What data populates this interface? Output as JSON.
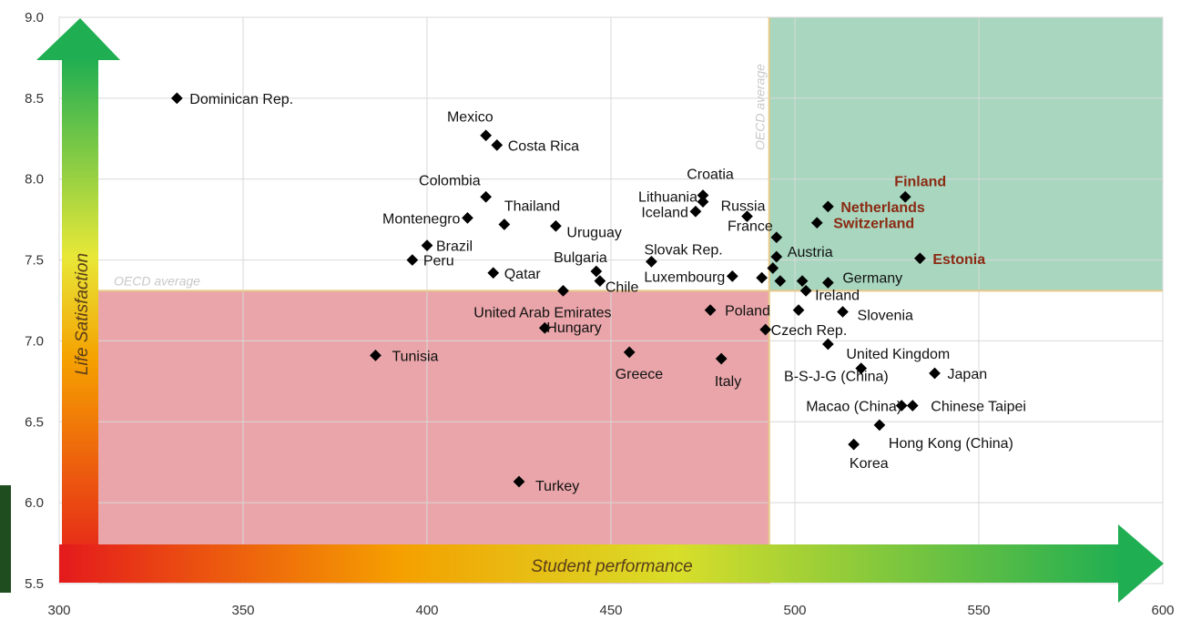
{
  "chart_data": {
    "type": "scatter",
    "title": "",
    "xlabel": "Student performance",
    "ylabel": "Life Satisfaction",
    "xlim": [
      300,
      600
    ],
    "ylim": [
      5.5,
      9.0
    ],
    "x_ticks": [
      300,
      350,
      400,
      450,
      500,
      550,
      600
    ],
    "y_ticks": [
      "5.5",
      "6.0",
      "6.5",
      "7.0",
      "7.5",
      "8.0",
      "8.5",
      "9.0"
    ],
    "grid": true,
    "reference_lines": {
      "x": {
        "value": 493,
        "label": "OECD average"
      },
      "y": {
        "value": 7.31,
        "label": "OECD average"
      }
    },
    "colors": {
      "low_quadrant": "#e8a0a4",
      "high_quadrant": "#a3d4bc",
      "highlight_label": "#8b2a12",
      "marker": "#000000"
    },
    "points": [
      {
        "label": "Dominican Rep.",
        "x": 332,
        "y": 8.5
      },
      {
        "label": "Mexico",
        "x": 416,
        "y": 8.27
      },
      {
        "label": "Costa Rica",
        "x": 419,
        "y": 8.21
      },
      {
        "label": "Colombia",
        "x": 416,
        "y": 7.89
      },
      {
        "label": "Thailand",
        "x": 421,
        "y": 7.72
      },
      {
        "label": "Montenegro",
        "x": 411,
        "y": 7.76
      },
      {
        "label": "Uruguay",
        "x": 435,
        "y": 7.71
      },
      {
        "label": "Brazil",
        "x": 400,
        "y": 7.59
      },
      {
        "label": "Peru",
        "x": 396,
        "y": 7.5
      },
      {
        "label": "Qatar",
        "x": 418,
        "y": 7.42
      },
      {
        "label": "Bulgaria",
        "x": 446,
        "y": 7.43
      },
      {
        "label": "Chile",
        "x": 447,
        "y": 7.37
      },
      {
        "label": "Croatia",
        "x": 475,
        "y": 7.9
      },
      {
        "label": "Lithuania",
        "x": 475,
        "y": 7.86
      },
      {
        "label": "Iceland",
        "x": 473,
        "y": 7.8
      },
      {
        "label": "Russia",
        "x": 487,
        "y": 7.77
      },
      {
        "label": "Slovak Rep.",
        "x": 461,
        "y": 7.49
      },
      {
        "label": "Luxembourg",
        "x": 483,
        "y": 7.4
      },
      {
        "label": "United Arab Emirates",
        "x": 437,
        "y": 7.31
      },
      {
        "label": "Poland",
        "x": 477,
        "y": 7.19
      },
      {
        "label": "Hungary",
        "x": 432,
        "y": 7.08
      },
      {
        "label": "Tunisia",
        "x": 386,
        "y": 6.91
      },
      {
        "label": "Greece",
        "x": 455,
        "y": 6.93
      },
      {
        "label": "Italy",
        "x": 480,
        "y": 6.89
      },
      {
        "label": "Turkey",
        "x": 425,
        "y": 6.13
      },
      {
        "label": "Finland",
        "x": 530,
        "y": 7.89,
        "highlight": true
      },
      {
        "label": "Netherlands",
        "x": 509,
        "y": 7.83,
        "highlight": true
      },
      {
        "label": "Switzerland",
        "x": 506,
        "y": 7.73,
        "highlight": true
      },
      {
        "label": "Estonia",
        "x": 534,
        "y": 7.51,
        "highlight": true
      },
      {
        "label": "France",
        "x": 495,
        "y": 7.64
      },
      {
        "label": "Austria",
        "x": 495,
        "y": 7.52
      },
      {
        "label": "Germany",
        "x": 509,
        "y": 7.36
      },
      {
        "label": "Ireland",
        "x": 503,
        "y": 7.31
      },
      {
        "label": "Slovenia",
        "x": 513,
        "y": 7.18
      },
      {
        "label": "Czech Rep.",
        "x": 492,
        "y": 7.07
      },
      {
        "label": "United Kingdom",
        "x": 509,
        "y": 6.98
      },
      {
        "label": "B-S-J-G (China)",
        "x": 518,
        "y": 6.83
      },
      {
        "label": "Japan",
        "x": 538,
        "y": 6.8
      },
      {
        "label": "Macao (China)",
        "x": 529,
        "y": 6.6
      },
      {
        "label": "Chinese Taipei",
        "x": 532,
        "y": 6.6
      },
      {
        "label": "Hong Kong (China)",
        "x": 523,
        "y": 6.48
      },
      {
        "label": "Korea",
        "x": 516,
        "y": 6.36
      },
      {
        "label": "",
        "x": 491,
        "y": 7.39
      },
      {
        "label": "",
        "x": 494,
        "y": 7.45
      },
      {
        "label": "",
        "x": 496,
        "y": 7.37
      },
      {
        "label": "",
        "x": 502,
        "y": 7.37
      },
      {
        "label": "",
        "x": 501,
        "y": 7.19
      }
    ]
  }
}
